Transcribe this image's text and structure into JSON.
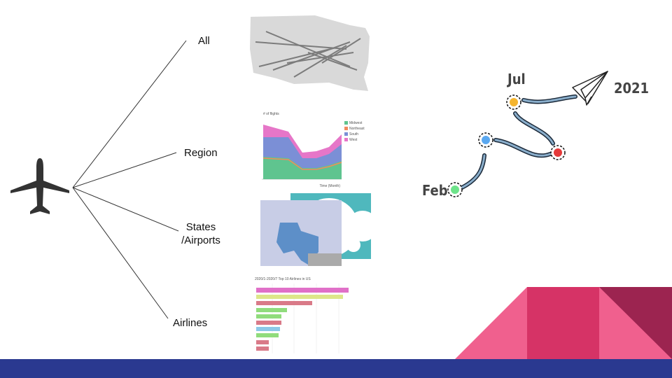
{
  "branches": [
    {
      "lines": [
        "All"
      ]
    },
    {
      "lines": [
        "Region"
      ]
    },
    {
      "lines": [
        "States",
        "/Airports"
      ]
    },
    {
      "lines": [
        "Airlines"
      ]
    }
  ],
  "thumbnails": {
    "area_chart": {
      "title": "# of flights",
      "x_label": "Time (Month)",
      "legend": [
        "Midwest",
        "Northeast",
        "South",
        "West"
      ]
    },
    "bar_chart": {
      "title": "2020/1-2020/7 Top 10 Airlines in US"
    }
  },
  "timeline": {
    "start": "Feb",
    "end": "Jul",
    "year": "2021"
  }
}
